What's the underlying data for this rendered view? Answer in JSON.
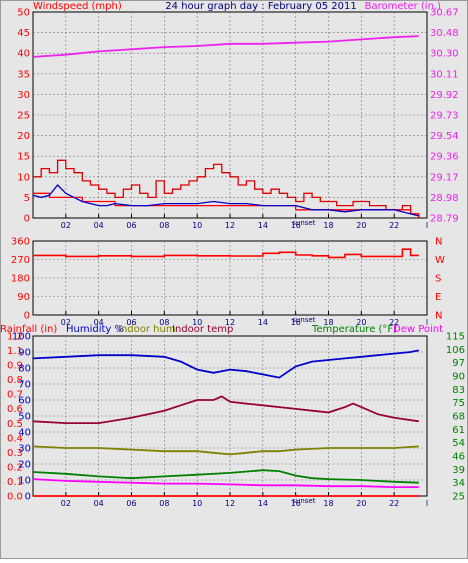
{
  "header": {
    "left_label": "Windspeed (mph)",
    "title": "24 hour graph day : February 05 2011",
    "right_label": "Barometer (in.)"
  },
  "colors": {
    "wind": "#ff0000",
    "gust": "#dd0000",
    "wind_avg": "#0000cc",
    "barometer": "#ee22ee",
    "direction": "#ff0000",
    "humidity": "#0000cc",
    "indoor_hum": "#808000",
    "indoor_temp": "#990033",
    "temperature": "#008000",
    "dewpoint": "#ff00ff",
    "rainfall": "#ff0000",
    "background": "#e6e6e6",
    "grid": "#777777"
  },
  "x_ticks": [
    "02",
    "04",
    "06",
    "08",
    "10",
    "12",
    "14",
    "16",
    "18",
    "20",
    "22",
    "l"
  ],
  "sunset_label": "sunset",
  "chart_data": [
    {
      "type": "line",
      "name": "wind-barometer",
      "x_range": [
        0,
        24
      ],
      "y_left": {
        "label": "Windspeed (mph)",
        "range": [
          0,
          50
        ],
        "ticks": [
          "0",
          "5",
          "10",
          "15",
          "20",
          "25",
          "30",
          "35",
          "40",
          "45",
          "50"
        ]
      },
      "y_right": {
        "label": "Barometer (in.)",
        "range": [
          28.79,
          30.67
        ],
        "ticks": [
          "28.79",
          "28.98",
          "29.17",
          "29.36",
          "29.54",
          "29.73",
          "29.92",
          "30.11",
          "30.30",
          "30.48",
          "30.67"
        ]
      },
      "series": [
        {
          "key": "gust",
          "axis": "left",
          "x": [
            0,
            0.5,
            1,
            1.5,
            2,
            2.5,
            3,
            3.5,
            4,
            4.5,
            5,
            5.5,
            6,
            6.5,
            7,
            7.5,
            8,
            8.5,
            9,
            9.5,
            10,
            10.5,
            11,
            11.5,
            12,
            12.5,
            13,
            13.5,
            14,
            14.5,
            15,
            15.5,
            16,
            16.5,
            17,
            17.5,
            18,
            18.5,
            19,
            19.5,
            20,
            20.5,
            21,
            21.5,
            22,
            22.5,
            23,
            23.5
          ],
          "y": [
            10,
            12,
            11,
            14,
            12,
            11,
            9,
            8,
            7,
            6,
            5,
            7,
            8,
            6,
            5,
            9,
            6,
            7,
            8,
            9,
            10,
            12,
            13,
            11,
            10,
            8,
            9,
            7,
            6,
            7,
            6,
            5,
            4,
            6,
            5,
            4,
            4,
            3,
            3,
            4,
            4,
            3,
            3,
            2,
            2,
            3,
            1,
            0
          ]
        },
        {
          "key": "wind",
          "axis": "left",
          "x": [
            0,
            1,
            2,
            3,
            4,
            5,
            6,
            7,
            8,
            9,
            10,
            11,
            12,
            13,
            14,
            15,
            16,
            17,
            18,
            19,
            20,
            21,
            22,
            23,
            23.5
          ],
          "y": [
            6,
            5,
            5,
            4,
            4,
            3,
            3,
            3,
            3,
            3,
            3,
            3,
            3,
            3,
            3,
            3,
            2,
            2,
            2,
            2,
            2,
            2,
            2,
            1,
            0
          ]
        },
        {
          "key": "wind_avg",
          "axis": "left",
          "x": [
            0,
            0.5,
            1,
            1.5,
            2,
            2.5,
            3,
            3.5,
            4,
            4.5,
            5,
            6,
            7,
            8,
            9,
            10,
            11,
            12,
            13,
            14,
            15,
            16,
            17,
            18,
            19,
            20,
            21,
            22,
            23,
            23.5
          ],
          "y": [
            5.5,
            5,
            5.5,
            8,
            6,
            5,
            4,
            3.5,
            3,
            3,
            3.5,
            3,
            3,
            3.5,
            3.5,
            3.5,
            4,
            3.5,
            3.5,
            3,
            3,
            3,
            2,
            2,
            1.5,
            2,
            2,
            2,
            1,
            0.5
          ]
        },
        {
          "key": "barometer",
          "axis": "right",
          "x": [
            0,
            2,
            4,
            6,
            8,
            10,
            12,
            14,
            16,
            18,
            20,
            22,
            23.5
          ],
          "y": [
            30.26,
            30.28,
            30.31,
            30.33,
            30.35,
            30.36,
            30.38,
            30.38,
            30.39,
            30.4,
            30.42,
            30.44,
            30.45
          ]
        }
      ]
    },
    {
      "type": "line",
      "name": "wind-direction",
      "x_range": [
        0,
        24
      ],
      "y_left": {
        "range": [
          0,
          360
        ],
        "ticks": [
          "0",
          "90",
          "180",
          "270",
          "360"
        ]
      },
      "y_right_labels": [
        "N",
        "W",
        "S",
        "E",
        "N"
      ],
      "series": [
        {
          "key": "direction",
          "axis": "left",
          "x": [
            0,
            2,
            4,
            6,
            8,
            10,
            12,
            14,
            15,
            16,
            17,
            18,
            19,
            20,
            21,
            22,
            22.5,
            23,
            23.5
          ],
          "y": [
            290,
            285,
            288,
            285,
            290,
            288,
            287,
            300,
            305,
            292,
            288,
            280,
            295,
            285,
            285,
            285,
            320,
            290,
            290
          ]
        }
      ]
    },
    {
      "type": "line",
      "name": "humidity-temperature",
      "x_range": [
        0,
        24
      ],
      "labels": {
        "rainfall": "Rainfall (in)",
        "humidity": "Humidity %",
        "indoor_hum": "Indoor hum",
        "indoor_temp": "Indoor temp",
        "temperature": "Temperature (°F)",
        "dewpoint": "Dew Point"
      },
      "y_rain_ticks": [
        "0.0",
        "0.1",
        "0.2",
        "0.3",
        "0.4",
        "0.5",
        "0.6",
        "0.7",
        "0.8",
        "0.9",
        "1.1",
        "1.2"
      ],
      "y_hum": {
        "range": [
          0,
          100
        ],
        "ticks": [
          "0",
          "10",
          "20",
          "30",
          "40",
          "50",
          "60",
          "70",
          "80",
          "90",
          "100"
        ]
      },
      "y_temp": {
        "range": [
          25,
          115
        ],
        "ticks": [
          "25",
          "34",
          "39",
          "46",
          "54",
          "61",
          "68",
          "75",
          "83",
          "90",
          "97",
          "106",
          "115"
        ]
      },
      "series": [
        {
          "key": "humidity",
          "axis": "hum",
          "x": [
            0,
            2,
            4,
            6,
            8,
            9,
            10,
            11,
            12,
            13,
            14,
            14.5,
            15,
            16,
            17,
            18,
            19,
            20,
            21,
            22,
            23,
            23.5
          ],
          "y": [
            86,
            87,
            88,
            88,
            87,
            84,
            79,
            77,
            79,
            78,
            76,
            75,
            74,
            81,
            84,
            85,
            86,
            87,
            88,
            89,
            90,
            91
          ]
        },
        {
          "key": "indoor_temp",
          "axis": "temp",
          "x": [
            0,
            2,
            4,
            6,
            7,
            8,
            9,
            10,
            11,
            11.5,
            12,
            13,
            14,
            15,
            16,
            17,
            18,
            19,
            19.5,
            20,
            21,
            22,
            23.5
          ],
          "y": [
            67,
            66,
            66,
            69,
            71,
            73,
            76,
            79,
            79,
            81,
            78,
            77,
            76,
            75,
            74,
            73,
            72,
            75,
            77,
            75,
            71,
            69,
            67
          ]
        },
        {
          "key": "indoor_hum",
          "axis": "hum",
          "x": [
            0,
            2,
            4,
            6,
            8,
            10,
            11,
            12,
            13,
            14,
            15,
            16,
            18,
            20,
            22,
            23.5
          ],
          "y": [
            31,
            30,
            30,
            29,
            28,
            28,
            27,
            26,
            27,
            28,
            28,
            29,
            30,
            30,
            30,
            31
          ]
        },
        {
          "key": "temperature",
          "axis": "temp",
          "x": [
            0,
            2,
            4,
            6,
            8,
            10,
            12,
            14,
            15,
            16,
            17,
            18,
            20,
            22,
            23.5
          ],
          "y": [
            38.5,
            37.5,
            36,
            35,
            36,
            37,
            38,
            39.5,
            39,
            36.5,
            35,
            34.5,
            34,
            33,
            32.5
          ]
        },
        {
          "key": "dewpoint",
          "axis": "temp",
          "x": [
            0,
            2,
            4,
            6,
            8,
            10,
            12,
            14,
            16,
            18,
            20,
            22,
            23.5
          ],
          "y": [
            34.5,
            33.5,
            33,
            32.5,
            32,
            32,
            31.5,
            31,
            31,
            30.5,
            30.5,
            30,
            30
          ]
        },
        {
          "key": "rainfall",
          "axis": "rain",
          "x": [
            0,
            23.5
          ],
          "y": [
            0.0,
            0.0
          ]
        }
      ]
    }
  ]
}
